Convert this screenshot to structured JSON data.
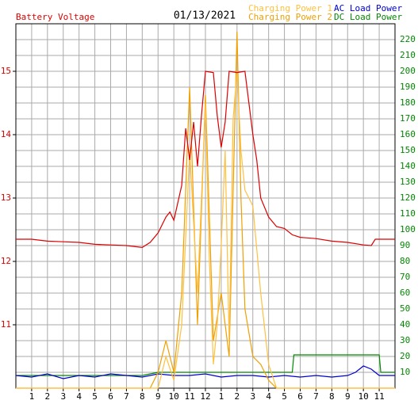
{
  "chart_data": {
    "type": "line",
    "title": "01/13/2021",
    "xlim": [
      0,
      24
    ],
    "xticks": [
      1,
      2,
      3,
      4,
      5,
      6,
      7,
      8,
      9,
      10,
      11,
      12,
      {
        "value": 13,
        "label": "1"
      },
      {
        "value": 14,
        "label": "2"
      },
      {
        "value": 15,
        "label": "3"
      },
      {
        "value": 16,
        "label": "4"
      },
      {
        "value": 17,
        "label": "5"
      },
      {
        "value": 18,
        "label": "6"
      },
      {
        "value": 19,
        "label": "7"
      },
      {
        "value": 20,
        "label": "8"
      },
      {
        "value": 21,
        "label": "9"
      },
      {
        "value": 22,
        "label": "10"
      },
      {
        "value": 23,
        "label": "11"
      }
    ],
    "ylim": [
      10,
      15.75
    ],
    "yticks": [
      11,
      12,
      13,
      14,
      15
    ],
    "y2lim": [
      0,
      230
    ],
    "y2ticks": [
      10,
      20,
      30,
      40,
      50,
      60,
      70,
      80,
      90,
      100,
      110,
      120,
      130,
      140,
      150,
      160,
      170,
      180,
      190,
      200,
      210,
      220
    ],
    "grid": true,
    "series": [
      {
        "name": "Battery Voltage",
        "color": "#dd0000",
        "axis": "y",
        "x": [
          0,
          1,
          2,
          3,
          4,
          5,
          6,
          7,
          8,
          8.5,
          9,
          9.5,
          9.75,
          10,
          10.5,
          10.75,
          11,
          11.25,
          11.5,
          11.75,
          12,
          12.5,
          12.75,
          13,
          13.25,
          13.5,
          14,
          14.5,
          14.75,
          15,
          15.25,
          15.5,
          16,
          16.5,
          17,
          17.5,
          18,
          19,
          20,
          21,
          22,
          22.5,
          22.75,
          24
        ],
        "values": [
          12.35,
          12.35,
          12.32,
          12.31,
          12.3,
          12.27,
          12.26,
          12.25,
          12.22,
          12.3,
          12.45,
          12.7,
          12.78,
          12.65,
          13.2,
          14.1,
          13.6,
          14.2,
          13.5,
          14.3,
          15.0,
          14.98,
          14.3,
          13.8,
          14.2,
          15.0,
          14.98,
          15.0,
          14.5,
          14.0,
          13.6,
          13.0,
          12.7,
          12.55,
          12.52,
          12.42,
          12.38,
          12.36,
          12.32,
          12.3,
          12.26,
          12.25,
          12.35,
          12.35
        ]
      },
      {
        "name": "Charging Power 1",
        "color": "#ffc040",
        "axis": "y2",
        "x": [
          0,
          9,
          9.5,
          10,
          10.5,
          11,
          11.5,
          12,
          12.25,
          12.5,
          12.75,
          13,
          13.25,
          13.5,
          13.75,
          14,
          14.25,
          14.5,
          15,
          15.5,
          16,
          16.5,
          24
        ],
        "values": [
          0,
          0,
          20,
          5,
          40,
          150,
          60,
          180,
          80,
          15,
          40,
          90,
          150,
          30,
          170,
          200,
          150,
          125,
          115,
          60,
          15,
          0,
          0
        ]
      },
      {
        "name": "Charging Power 2",
        "color": "#f0a000",
        "axis": "y2",
        "x": [
          0,
          8.5,
          9,
          9.5,
          10,
          10.5,
          11,
          11.5,
          12,
          12.5,
          13,
          13.5,
          14,
          14.25,
          14.5,
          15,
          15.5,
          16,
          16.5,
          24
        ],
        "values": [
          0,
          0,
          10,
          30,
          10,
          60,
          190,
          40,
          185,
          30,
          60,
          20,
          225,
          120,
          50,
          20,
          15,
          5,
          0,
          0
        ]
      },
      {
        "name": "AC Load Power",
        "color": "#0000cc",
        "axis": "y2",
        "x": [
          0,
          1,
          2,
          3,
          4,
          5,
          6,
          7,
          8,
          9,
          10,
          11,
          12,
          13,
          14,
          15,
          16,
          17,
          18,
          19,
          20,
          21,
          21.5,
          22,
          22.5,
          23,
          24
        ],
        "values": [
          8,
          7,
          9,
          6,
          8,
          7,
          9,
          8,
          7,
          9,
          8,
          8,
          9,
          7,
          8,
          8,
          7,
          8,
          7,
          8,
          7,
          8,
          10,
          14,
          12,
          8,
          8
        ]
      },
      {
        "name": "DC Load Power",
        "color": "#008800",
        "axis": "y2",
        "x": [
          0,
          8,
          9,
          17.5,
          17.6,
          23,
          23.1,
          24
        ],
        "values": [
          8,
          8,
          10,
          10,
          21,
          21,
          10,
          10
        ]
      }
    ]
  }
}
